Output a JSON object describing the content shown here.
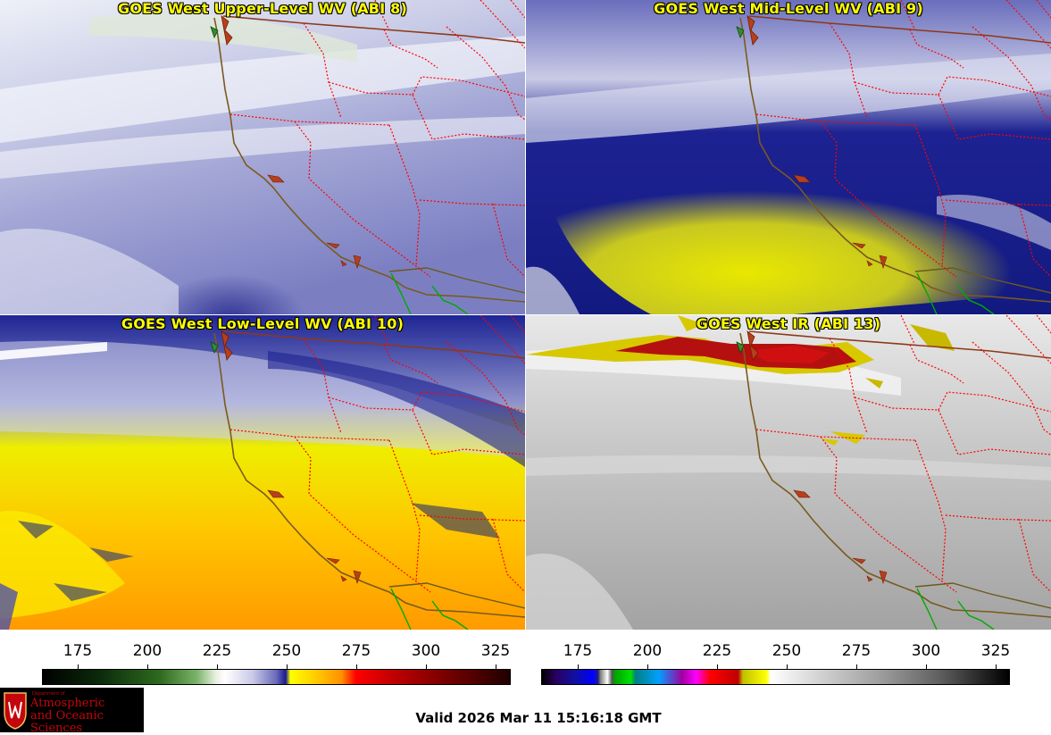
{
  "panels": [
    {
      "title": "GOES West Upper-Level WV (ABI 8)",
      "scheme": "wv_upper"
    },
    {
      "title": "GOES West Mid-Level WV (ABI 9)",
      "scheme": "wv_mid"
    },
    {
      "title": "GOES West Low-Level WV (ABI 10)",
      "scheme": "wv_low"
    },
    {
      "title": "GOES West IR (ABI 13)",
      "scheme": "ir"
    }
  ],
  "colorbars": [
    {
      "name": "wv",
      "ticks": [
        "175",
        "200",
        "225",
        "250",
        "275",
        "300",
        "325"
      ]
    },
    {
      "name": "ir",
      "ticks": [
        "175",
        "200",
        "225",
        "250",
        "275",
        "300",
        "325"
      ]
    }
  ],
  "logo": {
    "line1": "Department of",
    "line2": "Atmospheric",
    "line3": "and Oceanic Sciences"
  },
  "valid_time": "Valid 2026 Mar 11 15:16:18 GMT",
  "colors": {
    "state_border": "#ff0000",
    "coast": "#7a5a1e",
    "mexico_border": "#00aa00",
    "title_text": "#ffff00"
  }
}
